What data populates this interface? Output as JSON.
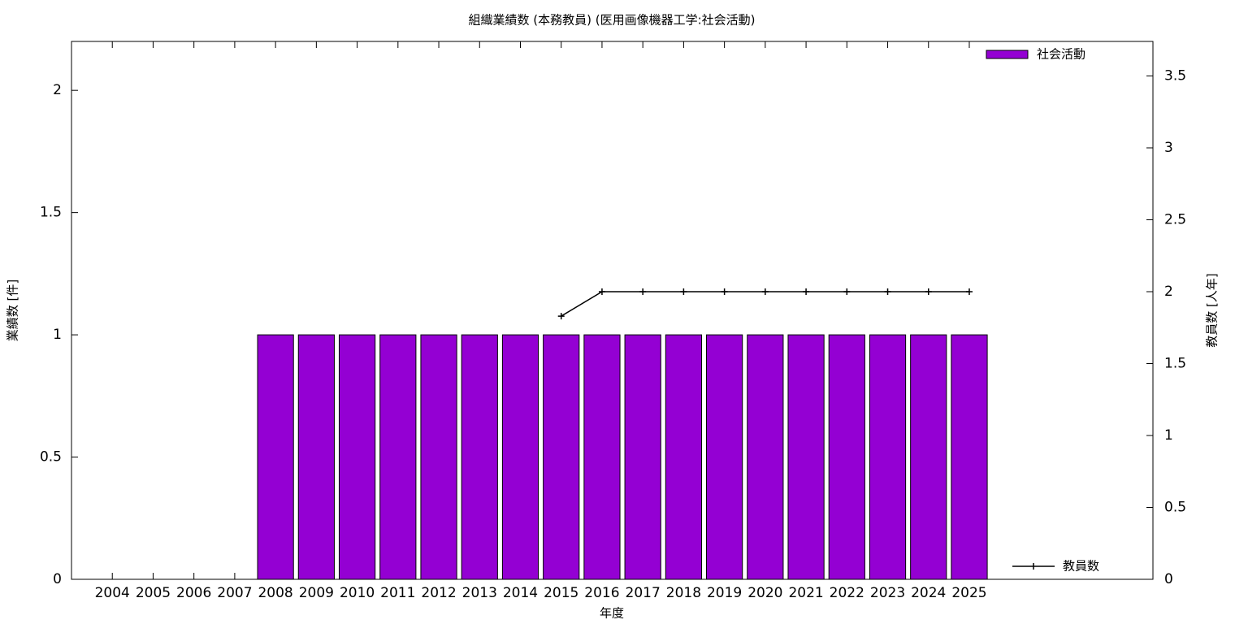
{
  "chart_data": {
    "type": "bar",
    "title": "組織業績数 (本務教員) (医用画像機器工学:社会活動)",
    "xlabel": "年度",
    "ylabel": "業績数 [件]",
    "y2label": "教員数 [人年]",
    "categories": [
      "2004",
      "2005",
      "2006",
      "2007",
      "2008",
      "2009",
      "2010",
      "2011",
      "2012",
      "2013",
      "2014",
      "2015",
      "2016",
      "2017",
      "2018",
      "2019",
      "2020",
      "2021",
      "2022",
      "2023",
      "2024",
      "2025"
    ],
    "series": [
      {
        "name": "社会活動",
        "type": "bar",
        "color": "#9400d3",
        "values": [
          0,
          0,
          0,
          0,
          1,
          1,
          1,
          1,
          1,
          1,
          1,
          1,
          1,
          1,
          1,
          1,
          1,
          1,
          1,
          1,
          1,
          1
        ]
      },
      {
        "name": "教員数",
        "type": "line",
        "color": "#000000",
        "axis": "y2",
        "values": [
          null,
          null,
          null,
          null,
          null,
          null,
          null,
          null,
          null,
          null,
          null,
          1.83,
          2,
          2,
          2,
          2,
          2,
          2,
          2,
          2,
          2,
          2
        ]
      }
    ],
    "ylim": [
      0,
      2.2
    ],
    "yticks": [
      0,
      0.5,
      1,
      1.5,
      2
    ],
    "y2lim": [
      0,
      3.74
    ],
    "y2ticks": [
      0,
      0.5,
      1,
      1.5,
      2,
      2.5,
      3,
      3.5
    ]
  }
}
